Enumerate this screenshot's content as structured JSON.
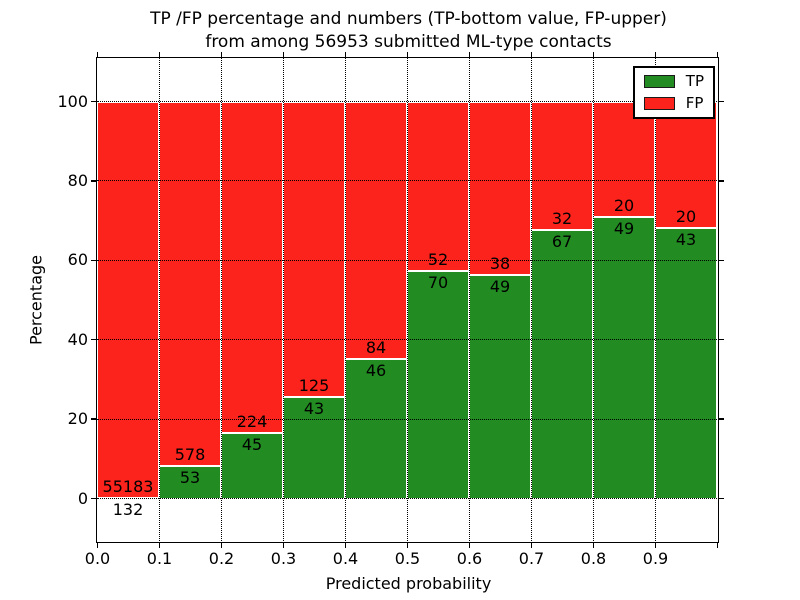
{
  "chart_data": {
    "type": "bar",
    "stacked": true,
    "title_lines": [
      "TP /FP percentage and numbers (TP-bottom value, FP-upper)",
      "from among 56953 submitted ML-type contacts"
    ],
    "xlabel": "Predicted probability",
    "ylabel": "Percentage",
    "total_submitted_contacts": 56953,
    "x_tick_labels": [
      "0.0",
      "0.1",
      "0.2",
      "0.3",
      "0.4",
      "0.5",
      "0.6",
      "0.7",
      "0.8",
      "0.9"
    ],
    "y_ticks": [
      0,
      20,
      40,
      60,
      80,
      100
    ],
    "y_tick_labels": [
      "0",
      "20",
      "40",
      "60",
      "80",
      "100"
    ],
    "ylim": [
      -10.8,
      110.9
    ],
    "grid": "dotted",
    "legend_position": "upper-right",
    "legend": [
      {
        "label": "TP",
        "color": "#228b22"
      },
      {
        "label": "FP",
        "color": "#fb231c"
      }
    ],
    "bins": [
      {
        "bin_start": 0.0,
        "tp": 132,
        "fp": 55183,
        "tp_pct": 0.2
      },
      {
        "bin_start": 0.1,
        "tp": 53,
        "fp": 578,
        "tp_pct": 8.4
      },
      {
        "bin_start": 0.2,
        "tp": 45,
        "fp": 224,
        "tp_pct": 16.7
      },
      {
        "bin_start": 0.3,
        "tp": 43,
        "fp": 125,
        "tp_pct": 25.6
      },
      {
        "bin_start": 0.4,
        "tp": 46,
        "fp": 84,
        "tp_pct": 35.4
      },
      {
        "bin_start": 0.5,
        "tp": 70,
        "fp": 52,
        "tp_pct": 57.4
      },
      {
        "bin_start": 0.6,
        "tp": 49,
        "fp": 38,
        "tp_pct": 56.3
      },
      {
        "bin_start": 0.7,
        "tp": 67,
        "fp": 32,
        "tp_pct": 67.7
      },
      {
        "bin_start": 0.8,
        "tp": 49,
        "fp": 20,
        "tp_pct": 71.0
      },
      {
        "bin_start": 0.9,
        "tp": 43,
        "fp": 20,
        "tp_pct": 68.3
      }
    ]
  }
}
